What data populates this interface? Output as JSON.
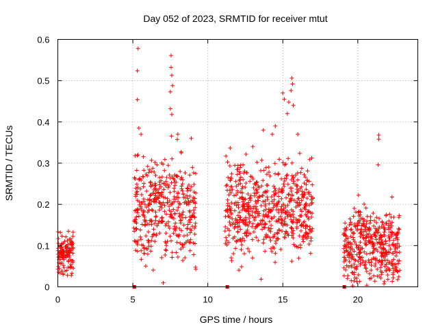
{
  "chart_data": {
    "type": "scatter",
    "title": "Day 052 of 2023, SRMTID for receiver mtut",
    "xlabel": "GPS time / hours",
    "ylabel": "SRMTID / TECUs",
    "xlim": [
      0,
      24
    ],
    "ylim": [
      0,
      0.6
    ],
    "grid": true,
    "marker": "plus",
    "color": "#ff0000",
    "x_ticks": [
      {
        "value": 0,
        "label": "0"
      },
      {
        "value": 5,
        "label": "5"
      },
      {
        "value": 10,
        "label": "10"
      },
      {
        "value": 15,
        "label": "15"
      },
      {
        "value": 20,
        "label": "20"
      }
    ],
    "y_ticks": [
      {
        "value": 0,
        "label": "0"
      },
      {
        "value": 0.1,
        "label": "0.1"
      },
      {
        "value": 0.2,
        "label": "0.2"
      },
      {
        "value": 0.3,
        "label": "0.3"
      },
      {
        "value": 0.4,
        "label": "0.4"
      },
      {
        "value": 0.5,
        "label": "0.5"
      },
      {
        "value": 0.6,
        "label": "0.6"
      }
    ],
    "zero_markers": [
      5.1,
      11.3,
      19.1
    ],
    "clusters": [
      {
        "x_start": 0.0,
        "x_end": 1.05,
        "y_low": 0.015,
        "y_high": 0.18,
        "count": 120,
        "center": 0.08
      },
      {
        "x_start": 5.05,
        "x_end": 9.2,
        "y_low": 0.005,
        "y_high": 0.38,
        "count": 420,
        "center": 0.19
      },
      {
        "x_start": 11.15,
        "x_end": 17.0,
        "y_low": 0.0,
        "y_high": 0.34,
        "count": 600,
        "center": 0.19
      },
      {
        "x_start": 19.05,
        "x_end": 22.8,
        "y_low": 0.0,
        "y_high": 0.27,
        "count": 420,
        "center": 0.1
      }
    ],
    "points": [
      {
        "x": 5.35,
        "y": 0.578
      },
      {
        "x": 5.3,
        "y": 0.524
      },
      {
        "x": 5.3,
        "y": 0.454
      },
      {
        "x": 7.55,
        "y": 0.561
      },
      {
        "x": 7.55,
        "y": 0.532
      },
      {
        "x": 7.6,
        "y": 0.513
      },
      {
        "x": 7.65,
        "y": 0.488
      },
      {
        "x": 7.5,
        "y": 0.473
      },
      {
        "x": 7.5,
        "y": 0.432
      },
      {
        "x": 7.6,
        "y": 0.418
      },
      {
        "x": 5.4,
        "y": 0.385
      },
      {
        "x": 5.55,
        "y": 0.37
      },
      {
        "x": 15.6,
        "y": 0.506
      },
      {
        "x": 15.65,
        "y": 0.492
      },
      {
        "x": 15.55,
        "y": 0.476
      },
      {
        "x": 15.0,
        "y": 0.47
      },
      {
        "x": 15.1,
        "y": 0.455
      },
      {
        "x": 15.4,
        "y": 0.448
      },
      {
        "x": 15.7,
        "y": 0.44
      },
      {
        "x": 15.3,
        "y": 0.42
      },
      {
        "x": 14.5,
        "y": 0.39
      },
      {
        "x": 13.7,
        "y": 0.38
      },
      {
        "x": 16.0,
        "y": 0.37
      },
      {
        "x": 14.3,
        "y": 0.37
      },
      {
        "x": 21.4,
        "y": 0.368
      },
      {
        "x": 21.4,
        "y": 0.358
      },
      {
        "x": 21.35,
        "y": 0.296
      },
      {
        "x": 8.0,
        "y": 0.37
      },
      {
        "x": 8.9,
        "y": 0.36
      },
      {
        "x": 13.0,
        "y": 0.34
      }
    ]
  }
}
